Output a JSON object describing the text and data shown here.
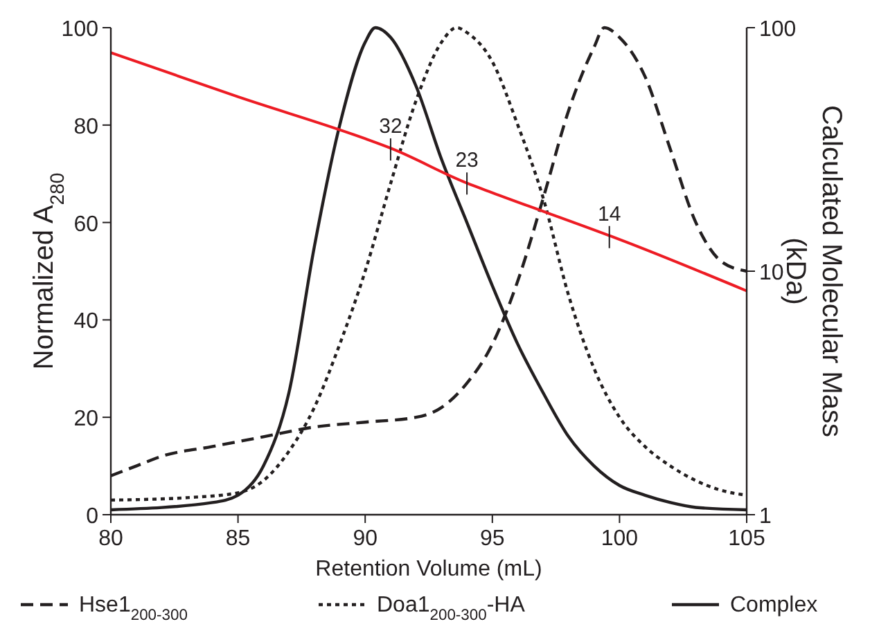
{
  "chart_data": {
    "type": "line",
    "xlabel": "Retention Volume (mL)",
    "ylabel": "Normalized A$_{280}$",
    "y2label": "Calculated Molecular Mass (kDa)",
    "xlim": [
      80,
      105
    ],
    "xticks": [
      80,
      85,
      90,
      95,
      100,
      105
    ],
    "ylim": [
      0,
      100
    ],
    "yticks": [
      0,
      20,
      40,
      60,
      80,
      100
    ],
    "y2lim": [
      1,
      100
    ],
    "y2ticks": [
      1,
      10,
      100
    ],
    "log": "y2",
    "grid": false,
    "legend": "bottom",
    "series": [
      {
        "name": "Hse1$_{200-300}$",
        "color": "#231f20",
        "line_style": "dashed",
        "x": [
          80,
          81,
          82,
          84,
          86,
          88,
          90,
          92,
          93,
          94,
          95,
          96,
          97,
          98,
          99,
          99.4,
          100,
          101,
          102,
          103,
          104,
          105
        ],
        "values": [
          8,
          10,
          12,
          14,
          16,
          18,
          19,
          20,
          22,
          27,
          35,
          48,
          65,
          83,
          96,
          100,
          98,
          90,
          75,
          60,
          52,
          50
        ]
      },
      {
        "name": "Doa1$_{200-300}$-HA",
        "color": "#231f20",
        "line_style": "dotted",
        "x": [
          80,
          83,
          85,
          86,
          87,
          88,
          89,
          90,
          91,
          92,
          93,
          93.6,
          94,
          95,
          96,
          97,
          98,
          99,
          100,
          101,
          102,
          103,
          104,
          105
        ],
        "values": [
          3,
          3.5,
          4.5,
          7,
          13,
          22,
          35,
          50,
          68,
          85,
          97,
          100,
          99,
          93,
          80,
          65,
          45,
          30,
          20,
          14,
          10,
          7,
          5,
          4
        ]
      },
      {
        "name": "Complex",
        "color": "#231f20",
        "line_style": "solid",
        "x": [
          80,
          84,
          85,
          86,
          87,
          88,
          89,
          90,
          90.4,
          91,
          92,
          93,
          94,
          95,
          96,
          97,
          98,
          99,
          100,
          101,
          102,
          103,
          105
        ],
        "values": [
          1,
          2.5,
          4,
          10,
          25,
          55,
          80,
          97,
          100,
          98,
          88,
          73,
          60,
          47,
          35,
          25,
          16,
          10,
          6,
          4,
          2.5,
          1.5,
          1
        ]
      },
      {
        "color": "#ed1c24",
        "line_style": "solid",
        "axis": "y2",
        "x": [
          80,
          85,
          90,
          91,
          94,
          95,
          99.6,
          100,
          105
        ],
        "values": [
          79,
          52,
          35,
          32,
          23,
          21,
          14,
          13.5,
          8.3
        ]
      }
    ],
    "annotations": [
      {
        "text": "32",
        "x": 91,
        "y": 75
      },
      {
        "text": "23",
        "x": 94,
        "y": 68
      },
      {
        "text": "14",
        "x": 99.6,
        "y": 57
      }
    ]
  }
}
